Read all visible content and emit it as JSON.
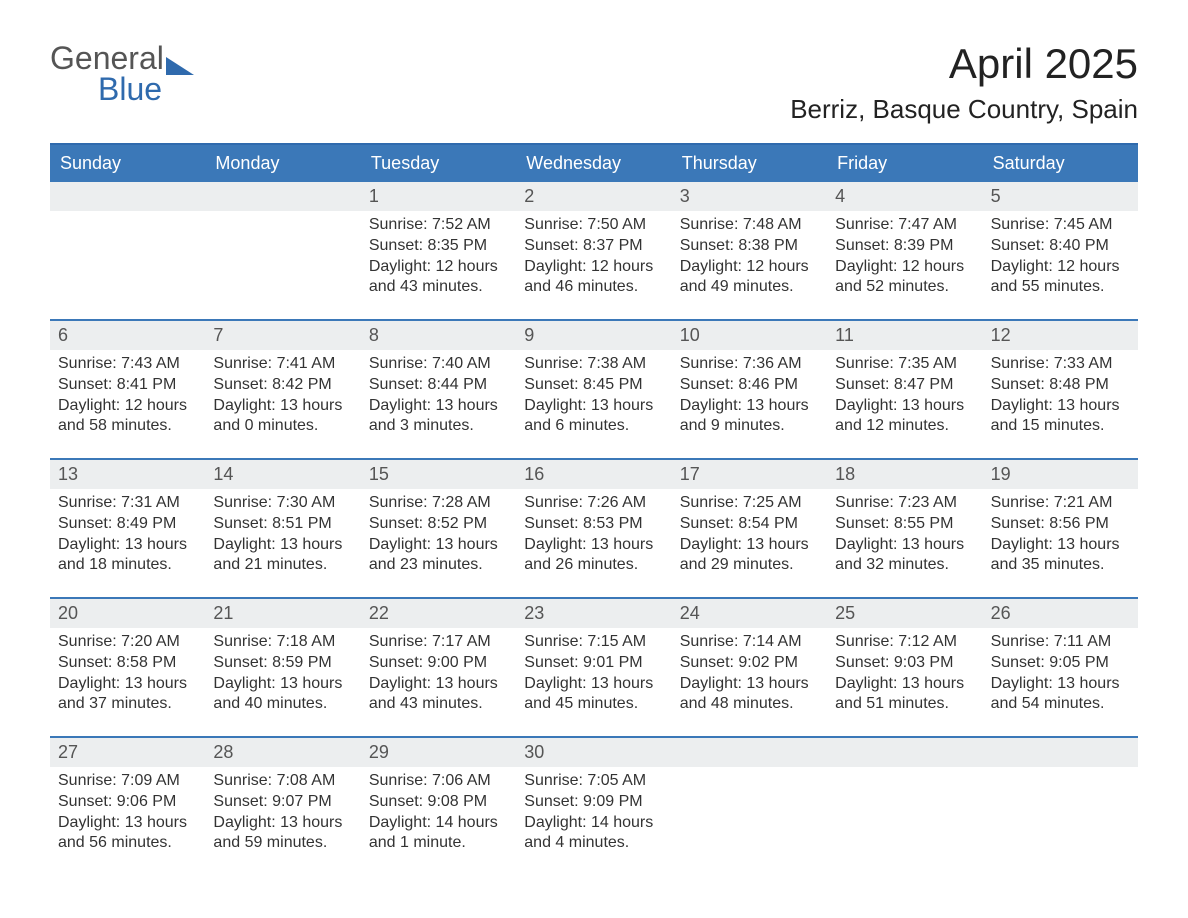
{
  "logo": {
    "general": "General",
    "blue": "Blue"
  },
  "title": "April 2025",
  "location": "Berriz, Basque Country, Spain",
  "style": {
    "header_bg": "#3b78b8",
    "header_text": "#ffffff",
    "week_divider": "#3b78b8",
    "daynum_bg": "#eceeef",
    "daynum_color": "#555555",
    "body_text": "#333333",
    "page_bg": "#ffffff",
    "logo_blue": "#2f6aad",
    "logo_gray": "#555555",
    "title_fontsize": 42,
    "location_fontsize": 26,
    "dow_fontsize": 18,
    "body_fontsize": 16,
    "columns": 7
  },
  "days_of_week": [
    "Sunday",
    "Monday",
    "Tuesday",
    "Wednesday",
    "Thursday",
    "Friday",
    "Saturday"
  ],
  "weeks": [
    [
      {
        "n": "",
        "sunrise": "",
        "sunset": "",
        "daylight": ""
      },
      {
        "n": "",
        "sunrise": "",
        "sunset": "",
        "daylight": ""
      },
      {
        "n": "1",
        "sunrise": "Sunrise: 7:52 AM",
        "sunset": "Sunset: 8:35 PM",
        "daylight": "Daylight: 12 hours and 43 minutes."
      },
      {
        "n": "2",
        "sunrise": "Sunrise: 7:50 AM",
        "sunset": "Sunset: 8:37 PM",
        "daylight": "Daylight: 12 hours and 46 minutes."
      },
      {
        "n": "3",
        "sunrise": "Sunrise: 7:48 AM",
        "sunset": "Sunset: 8:38 PM",
        "daylight": "Daylight: 12 hours and 49 minutes."
      },
      {
        "n": "4",
        "sunrise": "Sunrise: 7:47 AM",
        "sunset": "Sunset: 8:39 PM",
        "daylight": "Daylight: 12 hours and 52 minutes."
      },
      {
        "n": "5",
        "sunrise": "Sunrise: 7:45 AM",
        "sunset": "Sunset: 8:40 PM",
        "daylight": "Daylight: 12 hours and 55 minutes."
      }
    ],
    [
      {
        "n": "6",
        "sunrise": "Sunrise: 7:43 AM",
        "sunset": "Sunset: 8:41 PM",
        "daylight": "Daylight: 12 hours and 58 minutes."
      },
      {
        "n": "7",
        "sunrise": "Sunrise: 7:41 AM",
        "sunset": "Sunset: 8:42 PM",
        "daylight": "Daylight: 13 hours and 0 minutes."
      },
      {
        "n": "8",
        "sunrise": "Sunrise: 7:40 AM",
        "sunset": "Sunset: 8:44 PM",
        "daylight": "Daylight: 13 hours and 3 minutes."
      },
      {
        "n": "9",
        "sunrise": "Sunrise: 7:38 AM",
        "sunset": "Sunset: 8:45 PM",
        "daylight": "Daylight: 13 hours and 6 minutes."
      },
      {
        "n": "10",
        "sunrise": "Sunrise: 7:36 AM",
        "sunset": "Sunset: 8:46 PM",
        "daylight": "Daylight: 13 hours and 9 minutes."
      },
      {
        "n": "11",
        "sunrise": "Sunrise: 7:35 AM",
        "sunset": "Sunset: 8:47 PM",
        "daylight": "Daylight: 13 hours and 12 minutes."
      },
      {
        "n": "12",
        "sunrise": "Sunrise: 7:33 AM",
        "sunset": "Sunset: 8:48 PM",
        "daylight": "Daylight: 13 hours and 15 minutes."
      }
    ],
    [
      {
        "n": "13",
        "sunrise": "Sunrise: 7:31 AM",
        "sunset": "Sunset: 8:49 PM",
        "daylight": "Daylight: 13 hours and 18 minutes."
      },
      {
        "n": "14",
        "sunrise": "Sunrise: 7:30 AM",
        "sunset": "Sunset: 8:51 PM",
        "daylight": "Daylight: 13 hours and 21 minutes."
      },
      {
        "n": "15",
        "sunrise": "Sunrise: 7:28 AM",
        "sunset": "Sunset: 8:52 PM",
        "daylight": "Daylight: 13 hours and 23 minutes."
      },
      {
        "n": "16",
        "sunrise": "Sunrise: 7:26 AM",
        "sunset": "Sunset: 8:53 PM",
        "daylight": "Daylight: 13 hours and 26 minutes."
      },
      {
        "n": "17",
        "sunrise": "Sunrise: 7:25 AM",
        "sunset": "Sunset: 8:54 PM",
        "daylight": "Daylight: 13 hours and 29 minutes."
      },
      {
        "n": "18",
        "sunrise": "Sunrise: 7:23 AM",
        "sunset": "Sunset: 8:55 PM",
        "daylight": "Daylight: 13 hours and 32 minutes."
      },
      {
        "n": "19",
        "sunrise": "Sunrise: 7:21 AM",
        "sunset": "Sunset: 8:56 PM",
        "daylight": "Daylight: 13 hours and 35 minutes."
      }
    ],
    [
      {
        "n": "20",
        "sunrise": "Sunrise: 7:20 AM",
        "sunset": "Sunset: 8:58 PM",
        "daylight": "Daylight: 13 hours and 37 minutes."
      },
      {
        "n": "21",
        "sunrise": "Sunrise: 7:18 AM",
        "sunset": "Sunset: 8:59 PM",
        "daylight": "Daylight: 13 hours and 40 minutes."
      },
      {
        "n": "22",
        "sunrise": "Sunrise: 7:17 AM",
        "sunset": "Sunset: 9:00 PM",
        "daylight": "Daylight: 13 hours and 43 minutes."
      },
      {
        "n": "23",
        "sunrise": "Sunrise: 7:15 AM",
        "sunset": "Sunset: 9:01 PM",
        "daylight": "Daylight: 13 hours and 45 minutes."
      },
      {
        "n": "24",
        "sunrise": "Sunrise: 7:14 AM",
        "sunset": "Sunset: 9:02 PM",
        "daylight": "Daylight: 13 hours and 48 minutes."
      },
      {
        "n": "25",
        "sunrise": "Sunrise: 7:12 AM",
        "sunset": "Sunset: 9:03 PM",
        "daylight": "Daylight: 13 hours and 51 minutes."
      },
      {
        "n": "26",
        "sunrise": "Sunrise: 7:11 AM",
        "sunset": "Sunset: 9:05 PM",
        "daylight": "Daylight: 13 hours and 54 minutes."
      }
    ],
    [
      {
        "n": "27",
        "sunrise": "Sunrise: 7:09 AM",
        "sunset": "Sunset: 9:06 PM",
        "daylight": "Daylight: 13 hours and 56 minutes."
      },
      {
        "n": "28",
        "sunrise": "Sunrise: 7:08 AM",
        "sunset": "Sunset: 9:07 PM",
        "daylight": "Daylight: 13 hours and 59 minutes."
      },
      {
        "n": "29",
        "sunrise": "Sunrise: 7:06 AM",
        "sunset": "Sunset: 9:08 PM",
        "daylight": "Daylight: 14 hours and 1 minute."
      },
      {
        "n": "30",
        "sunrise": "Sunrise: 7:05 AM",
        "sunset": "Sunset: 9:09 PM",
        "daylight": "Daylight: 14 hours and 4 minutes."
      },
      {
        "n": "",
        "sunrise": "",
        "sunset": "",
        "daylight": ""
      },
      {
        "n": "",
        "sunrise": "",
        "sunset": "",
        "daylight": ""
      },
      {
        "n": "",
        "sunrise": "",
        "sunset": "",
        "daylight": ""
      }
    ]
  ]
}
